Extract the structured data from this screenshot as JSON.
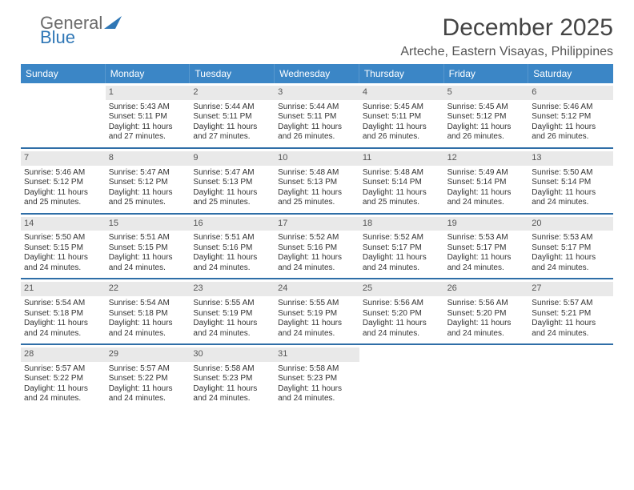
{
  "logo": {
    "text1": "General",
    "text2": "Blue"
  },
  "title": "December 2025",
  "location": "Arteche, Eastern Visayas, Philippines",
  "day_header_bg": "#3b86c6",
  "week_border_color": "#2f6ea7",
  "daynum_bg": "#e9e9e9",
  "days_of_week": [
    "Sunday",
    "Monday",
    "Tuesday",
    "Wednesday",
    "Thursday",
    "Friday",
    "Saturday"
  ],
  "weeks": [
    [
      {
        "n": "",
        "empty": true,
        "sunrise": "",
        "sunset": "",
        "daylight": ""
      },
      {
        "n": "1",
        "sunrise": "Sunrise: 5:43 AM",
        "sunset": "Sunset: 5:11 PM",
        "daylight": "Daylight: 11 hours and 27 minutes."
      },
      {
        "n": "2",
        "sunrise": "Sunrise: 5:44 AM",
        "sunset": "Sunset: 5:11 PM",
        "daylight": "Daylight: 11 hours and 27 minutes."
      },
      {
        "n": "3",
        "sunrise": "Sunrise: 5:44 AM",
        "sunset": "Sunset: 5:11 PM",
        "daylight": "Daylight: 11 hours and 26 minutes."
      },
      {
        "n": "4",
        "sunrise": "Sunrise: 5:45 AM",
        "sunset": "Sunset: 5:11 PM",
        "daylight": "Daylight: 11 hours and 26 minutes."
      },
      {
        "n": "5",
        "sunrise": "Sunrise: 5:45 AM",
        "sunset": "Sunset: 5:12 PM",
        "daylight": "Daylight: 11 hours and 26 minutes."
      },
      {
        "n": "6",
        "sunrise": "Sunrise: 5:46 AM",
        "sunset": "Sunset: 5:12 PM",
        "daylight": "Daylight: 11 hours and 26 minutes."
      }
    ],
    [
      {
        "n": "7",
        "sunrise": "Sunrise: 5:46 AM",
        "sunset": "Sunset: 5:12 PM",
        "daylight": "Daylight: 11 hours and 25 minutes."
      },
      {
        "n": "8",
        "sunrise": "Sunrise: 5:47 AM",
        "sunset": "Sunset: 5:12 PM",
        "daylight": "Daylight: 11 hours and 25 minutes."
      },
      {
        "n": "9",
        "sunrise": "Sunrise: 5:47 AM",
        "sunset": "Sunset: 5:13 PM",
        "daylight": "Daylight: 11 hours and 25 minutes."
      },
      {
        "n": "10",
        "sunrise": "Sunrise: 5:48 AM",
        "sunset": "Sunset: 5:13 PM",
        "daylight": "Daylight: 11 hours and 25 minutes."
      },
      {
        "n": "11",
        "sunrise": "Sunrise: 5:48 AM",
        "sunset": "Sunset: 5:14 PM",
        "daylight": "Daylight: 11 hours and 25 minutes."
      },
      {
        "n": "12",
        "sunrise": "Sunrise: 5:49 AM",
        "sunset": "Sunset: 5:14 PM",
        "daylight": "Daylight: 11 hours and 24 minutes."
      },
      {
        "n": "13",
        "sunrise": "Sunrise: 5:50 AM",
        "sunset": "Sunset: 5:14 PM",
        "daylight": "Daylight: 11 hours and 24 minutes."
      }
    ],
    [
      {
        "n": "14",
        "sunrise": "Sunrise: 5:50 AM",
        "sunset": "Sunset: 5:15 PM",
        "daylight": "Daylight: 11 hours and 24 minutes."
      },
      {
        "n": "15",
        "sunrise": "Sunrise: 5:51 AM",
        "sunset": "Sunset: 5:15 PM",
        "daylight": "Daylight: 11 hours and 24 minutes."
      },
      {
        "n": "16",
        "sunrise": "Sunrise: 5:51 AM",
        "sunset": "Sunset: 5:16 PM",
        "daylight": "Daylight: 11 hours and 24 minutes."
      },
      {
        "n": "17",
        "sunrise": "Sunrise: 5:52 AM",
        "sunset": "Sunset: 5:16 PM",
        "daylight": "Daylight: 11 hours and 24 minutes."
      },
      {
        "n": "18",
        "sunrise": "Sunrise: 5:52 AM",
        "sunset": "Sunset: 5:17 PM",
        "daylight": "Daylight: 11 hours and 24 minutes."
      },
      {
        "n": "19",
        "sunrise": "Sunrise: 5:53 AM",
        "sunset": "Sunset: 5:17 PM",
        "daylight": "Daylight: 11 hours and 24 minutes."
      },
      {
        "n": "20",
        "sunrise": "Sunrise: 5:53 AM",
        "sunset": "Sunset: 5:17 PM",
        "daylight": "Daylight: 11 hours and 24 minutes."
      }
    ],
    [
      {
        "n": "21",
        "sunrise": "Sunrise: 5:54 AM",
        "sunset": "Sunset: 5:18 PM",
        "daylight": "Daylight: 11 hours and 24 minutes."
      },
      {
        "n": "22",
        "sunrise": "Sunrise: 5:54 AM",
        "sunset": "Sunset: 5:18 PM",
        "daylight": "Daylight: 11 hours and 24 minutes."
      },
      {
        "n": "23",
        "sunrise": "Sunrise: 5:55 AM",
        "sunset": "Sunset: 5:19 PM",
        "daylight": "Daylight: 11 hours and 24 minutes."
      },
      {
        "n": "24",
        "sunrise": "Sunrise: 5:55 AM",
        "sunset": "Sunset: 5:19 PM",
        "daylight": "Daylight: 11 hours and 24 minutes."
      },
      {
        "n": "25",
        "sunrise": "Sunrise: 5:56 AM",
        "sunset": "Sunset: 5:20 PM",
        "daylight": "Daylight: 11 hours and 24 minutes."
      },
      {
        "n": "26",
        "sunrise": "Sunrise: 5:56 AM",
        "sunset": "Sunset: 5:20 PM",
        "daylight": "Daylight: 11 hours and 24 minutes."
      },
      {
        "n": "27",
        "sunrise": "Sunrise: 5:57 AM",
        "sunset": "Sunset: 5:21 PM",
        "daylight": "Daylight: 11 hours and 24 minutes."
      }
    ],
    [
      {
        "n": "28",
        "sunrise": "Sunrise: 5:57 AM",
        "sunset": "Sunset: 5:22 PM",
        "daylight": "Daylight: 11 hours and 24 minutes."
      },
      {
        "n": "29",
        "sunrise": "Sunrise: 5:57 AM",
        "sunset": "Sunset: 5:22 PM",
        "daylight": "Daylight: 11 hours and 24 minutes."
      },
      {
        "n": "30",
        "sunrise": "Sunrise: 5:58 AM",
        "sunset": "Sunset: 5:23 PM",
        "daylight": "Daylight: 11 hours and 24 minutes."
      },
      {
        "n": "31",
        "sunrise": "Sunrise: 5:58 AM",
        "sunset": "Sunset: 5:23 PM",
        "daylight": "Daylight: 11 hours and 24 minutes."
      },
      {
        "n": "",
        "empty": true,
        "sunrise": "",
        "sunset": "",
        "daylight": ""
      },
      {
        "n": "",
        "empty": true,
        "sunrise": "",
        "sunset": "",
        "daylight": ""
      },
      {
        "n": "",
        "empty": true,
        "sunrise": "",
        "sunset": "",
        "daylight": ""
      }
    ]
  ]
}
